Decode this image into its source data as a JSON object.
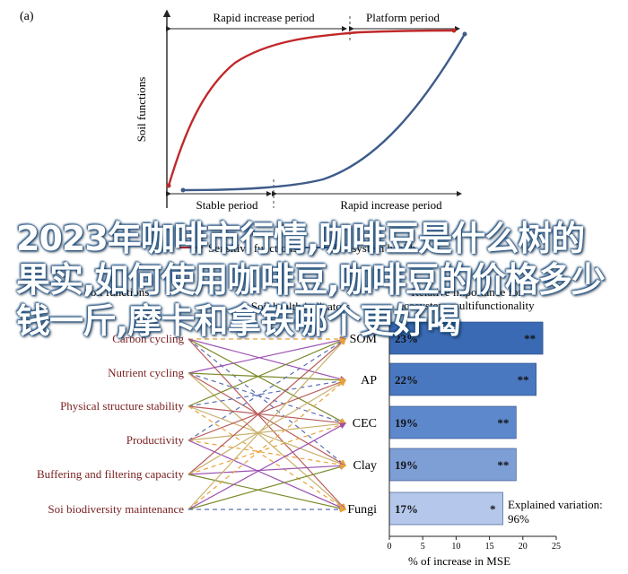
{
  "panel_a": {
    "label": "(a)",
    "y_axis_label": "Soil functions",
    "top_brackets": [
      "Rapid increase period",
      "Platform period"
    ],
    "bottom_brackets": [
      "Stable period",
      "Rapid increase period"
    ],
    "bottom_left_fragment": "Sensitive functions",
    "bottom_right_fragment": "Ecosystem health"
  },
  "panel_b": {
    "left_header": "Soil functions",
    "middle_header": "Soil health indicators",
    "right_header": "Relative importance for\necosystem multifunctionality",
    "functions": [
      "Carbon cycling",
      "Nutrient cycling",
      "Physical structure stability",
      "Productivity",
      "Buffering and filtering capacity",
      "Soi biodiversity maintenance"
    ],
    "explained_label": "Explained variation:",
    "explained_value": "96%"
  },
  "chart_data": {
    "type": "bar",
    "orientation": "horizontal",
    "categories": [
      "SOM",
      "AP",
      "CEC",
      "Clay",
      "Fungi"
    ],
    "values": [
      23,
      22,
      19,
      19,
      17
    ],
    "value_labels": [
      "23%",
      "22%",
      "19%",
      "19%",
      "17%"
    ],
    "significance": [
      "**",
      "**",
      "**",
      "**",
      "*"
    ],
    "colors": [
      "#3a6ab4",
      "#4a78c0",
      "#5d88cc",
      "#7e9ed6",
      "#b5c7ea"
    ],
    "xlabel": "% of increase in MSE",
    "xlim": [
      0,
      25
    ],
    "xticks": [
      0,
      5,
      10,
      15,
      20,
      25
    ]
  },
  "overlay_title": "2023年咖啡市行情,咖啡豆是什么树的果实,如何使用咖啡豆,咖啡豆的价格多少钱一斤,摩卡和拿铁哪个更好喝"
}
